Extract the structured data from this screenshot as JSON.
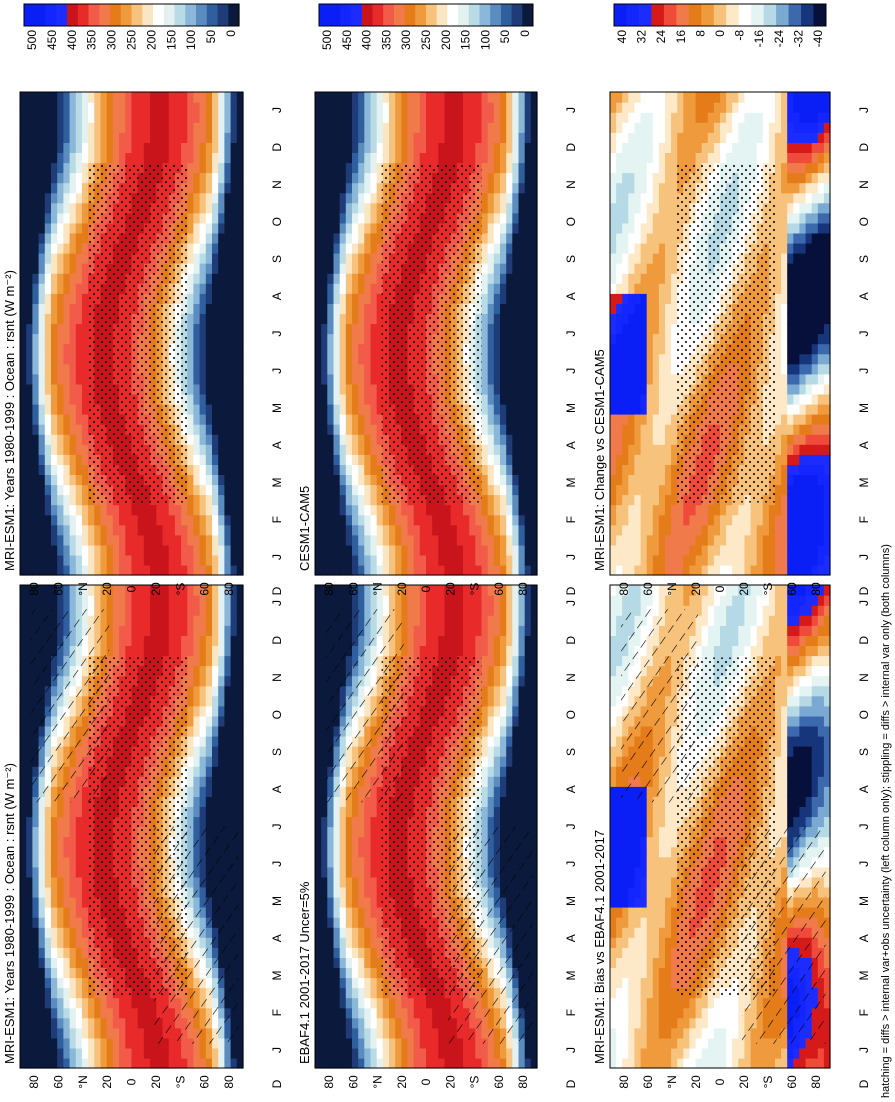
{
  "caption": "hatching = diffs > internal var+obs uncertainty (left column only); stippling = diffs > internal var only (both columns)",
  "palettes": {
    "abs": [
      "#0b1a3c",
      "#1f3c78",
      "#2f5f9e",
      "#5a8cc0",
      "#8bb7d8",
      "#b9dbe6",
      "#e3f2f0",
      "#ffffff",
      "#fbe6c4",
      "#f6c27e",
      "#ef9a3c",
      "#e57c1a",
      "#f07a4a",
      "#f25a4a",
      "#e82a2a",
      "#c9141c",
      "#1c2cff",
      "#1426ff",
      "#0a1ff5",
      "#0a1ff5"
    ],
    "diff": [
      "#06103a",
      "#16357a",
      "#3c68ad",
      "#7aaad2",
      "#b6d9e6",
      "#e4f4f2",
      "#ffffff",
      "#fde9c8",
      "#f7c27c",
      "#ef9a3c",
      "#e57c1a",
      "#f07a4a",
      "#f04a3a",
      "#d61a1a",
      "#1c2cff",
      "#1426ff",
      "#0a1ff5"
    ]
  },
  "chart_data": [
    {
      "type": "heatmap",
      "panel": "top-left",
      "title": "MRI-ESM1: Years 1980-1999 : Ocean : rsnt (W m⁻²)",
      "x_ticks": [
        "J",
        "F",
        "M",
        "A",
        "M",
        "J",
        "J",
        "A",
        "S",
        "O",
        "N",
        "D",
        "J"
      ],
      "y_ticks": [
        "80",
        "60",
        "°N",
        "20",
        "0",
        "20",
        "°S",
        "60",
        "80"
      ],
      "y_end_label": "D",
      "colorbar_labels": [
        "500",
        "450",
        "400",
        "350",
        "300",
        "250",
        "200",
        "150",
        "100",
        "50",
        "0"
      ],
      "hatching": true,
      "stippling": true,
      "field": "absolute",
      "annual_mean_max": 350
    },
    {
      "type": "heatmap",
      "panel": "top-right",
      "title": "MRI-ESM1: Years 1980-1999 : Ocean : rsnt (W m⁻²)",
      "x_ticks": [
        "J",
        "F",
        "M",
        "A",
        "M",
        "J",
        "J",
        "A",
        "S",
        "O",
        "N",
        "D",
        "J"
      ],
      "y_ticks": [
        "80",
        "60",
        "°N",
        "20",
        "0",
        "20",
        "°S",
        "60",
        "80"
      ],
      "y_end_label": "D",
      "colorbar_labels": [
        "500",
        "450",
        "400",
        "350",
        "300",
        "250",
        "200",
        "150",
        "100",
        "50",
        "0"
      ],
      "hatching": false,
      "stippling": true,
      "field": "absolute",
      "annual_mean_max": 350
    },
    {
      "type": "heatmap",
      "panel": "middle-left",
      "title": "EBAF4.1 2001-2017 Uncer=5%",
      "x_ticks": [
        "J",
        "F",
        "M",
        "A",
        "M",
        "J",
        "J",
        "A",
        "S",
        "O",
        "N",
        "D",
        "J"
      ],
      "y_ticks": [
        "80",
        "60",
        "°N",
        "20",
        "0",
        "20",
        "°S",
        "60",
        "80"
      ],
      "y_end_label": "D",
      "colorbar_labels": [
        "500",
        "450",
        "400",
        "350",
        "300",
        "250",
        "200",
        "150",
        "100",
        "50",
        "0"
      ],
      "hatching": true,
      "stippling": true,
      "field": "absolute",
      "annual_mean_max": 350
    },
    {
      "type": "heatmap",
      "panel": "middle-right",
      "title": "CESM1-CAM5",
      "x_ticks": [
        "J",
        "F",
        "M",
        "A",
        "M",
        "J",
        "J",
        "A",
        "S",
        "O",
        "N",
        "D",
        "J"
      ],
      "y_ticks": [
        "80",
        "60",
        "°N",
        "20",
        "0",
        "20",
        "°S",
        "60",
        "80"
      ],
      "y_end_label": "D",
      "colorbar_labels": [
        "500",
        "450",
        "400",
        "350",
        "300",
        "250",
        "200",
        "150",
        "100",
        "50",
        "0"
      ],
      "hatching": false,
      "stippling": true,
      "field": "absolute",
      "annual_mean_max": 350
    },
    {
      "type": "heatmap",
      "panel": "bottom-left",
      "title": "MRI-ESM1: Bias vs EBAF4.1 2001-2017",
      "x_ticks": [
        "J",
        "F",
        "M",
        "A",
        "M",
        "J",
        "J",
        "A",
        "S",
        "O",
        "N",
        "D",
        "J"
      ],
      "y_ticks": [
        "80",
        "60",
        "°N",
        "20",
        "0",
        "20",
        "°S",
        "60",
        "80"
      ],
      "y_end_label": "D",
      "colorbar_labels": [
        "40",
        "32",
        "24",
        "16",
        "8",
        "0",
        "-8",
        "-16",
        "-24",
        "-32",
        "-40"
      ],
      "hatching": true,
      "stippling": true,
      "field": "difference",
      "range": [
        -40,
        40
      ]
    },
    {
      "type": "heatmap",
      "panel": "bottom-right",
      "title": "MRI-ESM1: Change vs CESM1-CAM5",
      "x_ticks": [
        "J",
        "F",
        "M",
        "A",
        "M",
        "J",
        "J",
        "A",
        "S",
        "O",
        "N",
        "D",
        "J"
      ],
      "y_ticks": [
        "80",
        "60",
        "°N",
        "20",
        "0",
        "20",
        "°S",
        "60",
        "80"
      ],
      "y_end_label": "D",
      "colorbar_labels": [
        "40",
        "32",
        "24",
        "16",
        "8",
        "0",
        "-8",
        "-16",
        "-24",
        "-32",
        "-40"
      ],
      "hatching": false,
      "stippling": true,
      "field": "difference",
      "range": [
        -40,
        40
      ]
    }
  ]
}
